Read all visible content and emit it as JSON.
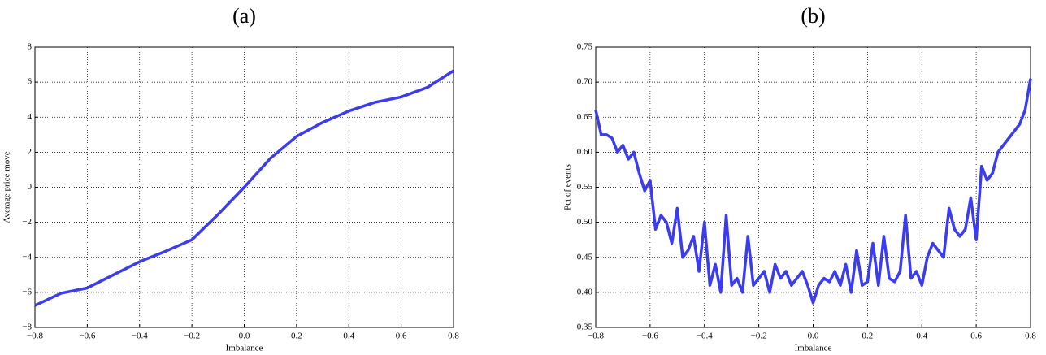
{
  "chart_data": [
    {
      "type": "line",
      "title": "(a)",
      "xlabel": "Imbalance",
      "ylabel": "Average price move",
      "color": "#3b3bf0",
      "grid": true,
      "x": [
        -0.8,
        -0.7,
        -0.6,
        -0.5,
        -0.4,
        -0.3,
        -0.2,
        -0.1,
        0,
        0.1,
        0.2,
        0.3,
        0.4,
        0.5,
        0.6,
        0.7,
        0.8
      ],
      "values": [
        -6.75,
        -6.05,
        -5.75,
        -5.0,
        -4.25,
        -3.65,
        -3.0,
        -1.55,
        0,
        1.65,
        2.9,
        3.7,
        4.35,
        4.85,
        5.15,
        5.7,
        6.65
      ],
      "xlim": [
        -0.8,
        0.8
      ],
      "xticks": [
        {
          "value": -0.8,
          "label": "−0.8"
        },
        {
          "value": -0.6,
          "label": "−0.6"
        },
        {
          "value": -0.4,
          "label": "−0.4"
        },
        {
          "value": -0.2,
          "label": "−0.2"
        },
        {
          "value": 0,
          "label": "0.0"
        },
        0.2,
        0.4,
        0.6,
        0.8
      ],
      "ylim": [
        -8,
        8
      ],
      "yticks": [
        {
          "value": -8,
          "label": "−8"
        },
        {
          "value": -6,
          "label": "−6"
        },
        {
          "value": -4,
          "label": "−4"
        },
        {
          "value": -2,
          "label": "−2"
        },
        0,
        2,
        4,
        6,
        8
      ]
    },
    {
      "type": "line",
      "title": "(b)",
      "xlabel": "Imbalance",
      "ylabel": "Pct of events",
      "color": "#3b3bf0",
      "grid": true,
      "x": [
        -0.8,
        -0.78,
        -0.76,
        -0.74,
        -0.72,
        -0.7,
        -0.68,
        -0.66,
        -0.64,
        -0.62,
        -0.6,
        -0.58,
        -0.56,
        -0.54,
        -0.52,
        -0.5,
        -0.48,
        -0.46,
        -0.44,
        -0.42,
        -0.4,
        -0.38,
        -0.36,
        -0.34,
        -0.32,
        -0.3,
        -0.28,
        -0.26,
        -0.24,
        -0.22,
        -0.2,
        -0.18,
        -0.16,
        -0.14,
        -0.12,
        -0.1,
        -0.08,
        -0.06,
        -0.04,
        -0.02,
        0,
        0.02,
        0.04,
        0.06,
        0.08,
        0.1,
        0.12,
        0.14,
        0.16,
        0.18,
        0.2,
        0.22,
        0.24,
        0.26,
        0.28,
        0.3,
        0.32,
        0.34,
        0.36,
        0.38,
        0.4,
        0.42,
        0.44,
        0.46,
        0.48,
        0.5,
        0.52,
        0.54,
        0.56,
        0.58,
        0.6,
        0.62,
        0.64,
        0.66,
        0.68,
        0.7,
        0.72,
        0.74,
        0.76,
        0.78,
        0.8
      ],
      "values": [
        0.66,
        0.625,
        0.625,
        0.62,
        0.6,
        0.61,
        0.59,
        0.6,
        0.57,
        0.545,
        0.56,
        0.49,
        0.51,
        0.5,
        0.47,
        0.52,
        0.45,
        0.46,
        0.48,
        0.43,
        0.5,
        0.41,
        0.44,
        0.4,
        0.51,
        0.41,
        0.42,
        0.4,
        0.48,
        0.41,
        0.42,
        0.43,
        0.4,
        0.44,
        0.42,
        0.43,
        0.41,
        0.42,
        0.43,
        0.41,
        0.385,
        0.41,
        0.42,
        0.415,
        0.43,
        0.41,
        0.44,
        0.4,
        0.46,
        0.41,
        0.415,
        0.47,
        0.41,
        0.48,
        0.42,
        0.415,
        0.43,
        0.51,
        0.42,
        0.43,
        0.41,
        0.45,
        0.47,
        0.46,
        0.45,
        0.52,
        0.49,
        0.48,
        0.49,
        0.535,
        0.475,
        0.58,
        0.56,
        0.57,
        0.6,
        0.61,
        0.62,
        0.63,
        0.64,
        0.66,
        0.705
      ],
      "xlim": [
        -0.8,
        0.8
      ],
      "xticks": [
        {
          "value": -0.8,
          "label": "−0.8"
        },
        {
          "value": -0.6,
          "label": "−0.6"
        },
        {
          "value": -0.4,
          "label": "−0.4"
        },
        {
          "value": -0.2,
          "label": "−0.2"
        },
        {
          "value": 0,
          "label": "0.0"
        },
        0.2,
        0.4,
        0.6,
        0.8
      ],
      "ylim": [
        0.35,
        0.75
      ],
      "yticks": [
        0.35,
        {
          "value": 0.4,
          "label": "0.40"
        },
        0.45,
        {
          "value": 0.5,
          "label": "0.50"
        },
        0.55,
        {
          "value": 0.6,
          "label": "0.60"
        },
        0.65,
        {
          "value": 0.7,
          "label": "0.70"
        },
        0.75
      ]
    }
  ]
}
